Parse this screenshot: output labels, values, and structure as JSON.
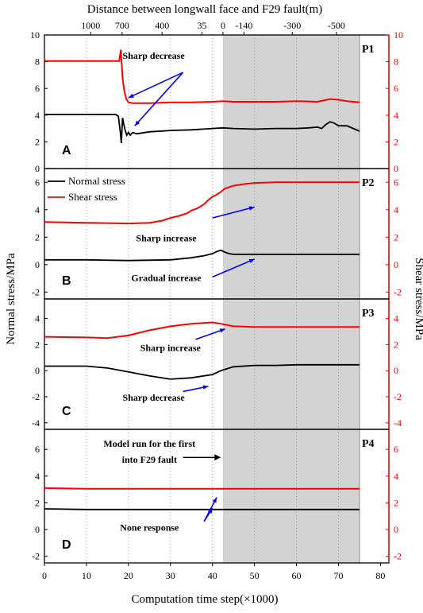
{
  "chart_data": {
    "type": "line",
    "top_axis": {
      "label": "Distance between longwall face and F29 fault(m)",
      "ticks": [
        {
          "label": "1000",
          "x": 11
        },
        {
          "label": "700",
          "x": 18.5
        },
        {
          "label": "400",
          "x": 28
        },
        {
          "label": "35",
          "x": 37.5
        },
        {
          "label": "0",
          "x": 42.5
        },
        {
          "label": "-140",
          "x": 47.5
        },
        {
          "label": "-300",
          "x": 59
        },
        {
          "label": "-500",
          "x": 69.5
        }
      ]
    },
    "xlabel": "Computation time step(×1000)",
    "xlim": [
      0,
      82
    ],
    "xticks": [
      "0",
      "10",
      "20",
      "30",
      "40",
      "50",
      "60",
      "70",
      "80"
    ],
    "ylabel_left": "Normal stress/MPa",
    "ylabel_right": "Shear stress/MPa",
    "shaded_x": [
      42.5,
      75
    ],
    "legend": {
      "normal": "Normal stress",
      "shear": "Shear stress"
    },
    "panels": [
      {
        "id": "A",
        "tag": "P1",
        "ylim": [
          0,
          10
        ],
        "yticks": [
          "0",
          "2",
          "4",
          "6",
          "8",
          "10"
        ],
        "normal": {
          "x": [
            0,
            10,
            17,
            17.6,
            18,
            18.3,
            18.6,
            18.9,
            19.2,
            19.6,
            20,
            20.4,
            21,
            22,
            25,
            30,
            35,
            40,
            42.5,
            45,
            50,
            55,
            60,
            63,
            65,
            66,
            67,
            68,
            69,
            70,
            72,
            75
          ],
          "y": [
            4.05,
            4.05,
            4.05,
            3.9,
            2.9,
            1.9,
            3.8,
            3.3,
            2.9,
            2.5,
            2.7,
            2.5,
            2.7,
            2.6,
            2.75,
            2.85,
            2.9,
            3.0,
            3.05,
            3.0,
            2.95,
            3.0,
            3.0,
            3.05,
            3.1,
            3.0,
            3.3,
            3.5,
            3.4,
            3.2,
            3.2,
            2.8
          ]
        },
        "shear": {
          "x": [
            0,
            10,
            17,
            17.8,
            18.2,
            18.6,
            19,
            19.5,
            20,
            21,
            22,
            25,
            30,
            35,
            40,
            42.5,
            45,
            50,
            55,
            60,
            65,
            68,
            70,
            72,
            75
          ],
          "y": [
            8.05,
            8.05,
            8.05,
            8.05,
            8.9,
            6.8,
            5.8,
            5.2,
            4.95,
            4.9,
            4.9,
            4.9,
            4.95,
            4.95,
            5.0,
            5.05,
            5.0,
            5.0,
            5.0,
            5.05,
            5.0,
            5.2,
            5.15,
            5.05,
            4.95
          ]
        },
        "annotations": [
          {
            "text": "Sharp decrease",
            "x": 26,
            "y": 8.2
          }
        ]
      },
      {
        "id": "B",
        "tag": "P2",
        "ylim": [
          -2.5,
          7
        ],
        "yticks": [
          "-2",
          "0",
          "2",
          "4",
          "6"
        ],
        "normal": {
          "x": [
            0,
            10,
            20,
            30,
            35,
            38,
            40,
            41,
            42,
            43,
            44,
            45,
            50,
            60,
            70,
            75
          ],
          "y": [
            0.35,
            0.35,
            0.3,
            0.35,
            0.5,
            0.65,
            0.8,
            0.95,
            1.05,
            0.9,
            0.8,
            0.75,
            0.75,
            0.75,
            0.75,
            0.75
          ]
        },
        "shear": {
          "x": [
            0,
            10,
            20,
            25,
            28,
            30,
            32,
            34,
            35,
            36,
            37,
            38,
            39,
            40,
            41,
            42,
            43,
            44,
            45,
            47,
            50,
            55,
            60,
            70,
            75
          ],
          "y": [
            3.1,
            3.05,
            3.0,
            3.05,
            3.2,
            3.4,
            3.55,
            3.75,
            3.95,
            4.05,
            4.2,
            4.4,
            4.7,
            4.95,
            5.1,
            5.3,
            5.55,
            5.65,
            5.75,
            5.85,
            5.95,
            6.0,
            6.0,
            6.0,
            6.0
          ]
        },
        "annotations": [
          {
            "text": "Sharp increase",
            "x": 29,
            "y": 1.7
          },
          {
            "text": "Gradual increase",
            "x": 29,
            "y": -1.2
          }
        ]
      },
      {
        "id": "C",
        "tag": "P3",
        "ylim": [
          -4.5,
          5.5
        ],
        "yticks": [
          "-4",
          "-2",
          "0",
          "2",
          "4"
        ],
        "normal": {
          "x": [
            0,
            10,
            15,
            20,
            25,
            30,
            35,
            40,
            42,
            45,
            50,
            55,
            60,
            70,
            75
          ],
          "y": [
            0.35,
            0.35,
            0.2,
            -0.1,
            -0.4,
            -0.65,
            -0.55,
            -0.3,
            0.0,
            0.3,
            0.4,
            0.4,
            0.45,
            0.45,
            0.45
          ]
        },
        "shear": {
          "x": [
            0,
            10,
            15,
            20,
            25,
            30,
            35,
            40,
            42,
            45,
            50,
            60,
            70,
            75
          ],
          "y": [
            2.6,
            2.55,
            2.5,
            2.7,
            3.1,
            3.4,
            3.6,
            3.7,
            3.6,
            3.4,
            3.35,
            3.35,
            3.35,
            3.35
          ]
        },
        "annotations": [
          {
            "text": "Sharp increase",
            "x": 30,
            "y": 1.5
          },
          {
            "text": "Sharp decrease",
            "x": 26,
            "y": -2.3
          }
        ]
      },
      {
        "id": "D",
        "tag": "P4",
        "ylim": [
          -2.5,
          7.5
        ],
        "yticks": [
          "-2",
          "0",
          "2",
          "4",
          "6"
        ],
        "normal": {
          "x": [
            0,
            10,
            20,
            30,
            40,
            50,
            60,
            70,
            75
          ],
          "y": [
            1.55,
            1.5,
            1.5,
            1.5,
            1.5,
            1.5,
            1.5,
            1.5,
            1.5
          ]
        },
        "shear": {
          "x": [
            0,
            10,
            20,
            30,
            40,
            50,
            60,
            70,
            75
          ],
          "y": [
            3.1,
            3.05,
            3.05,
            3.05,
            3.05,
            3.05,
            3.05,
            3.05,
            3.05
          ]
        },
        "annotations": [
          {
            "text": "Model run for the first",
            "x": 25,
            "y": 6.2
          },
          {
            "text": "into F29 fault",
            "x": 25,
            "y": 5.0
          },
          {
            "text": "None response",
            "x": 25,
            "y": -0.1
          }
        ]
      }
    ],
    "colors": {
      "normal": "#000000",
      "shear": "#ff0000",
      "shade": "#d3d3d3",
      "arrow": "#0000ff"
    }
  }
}
